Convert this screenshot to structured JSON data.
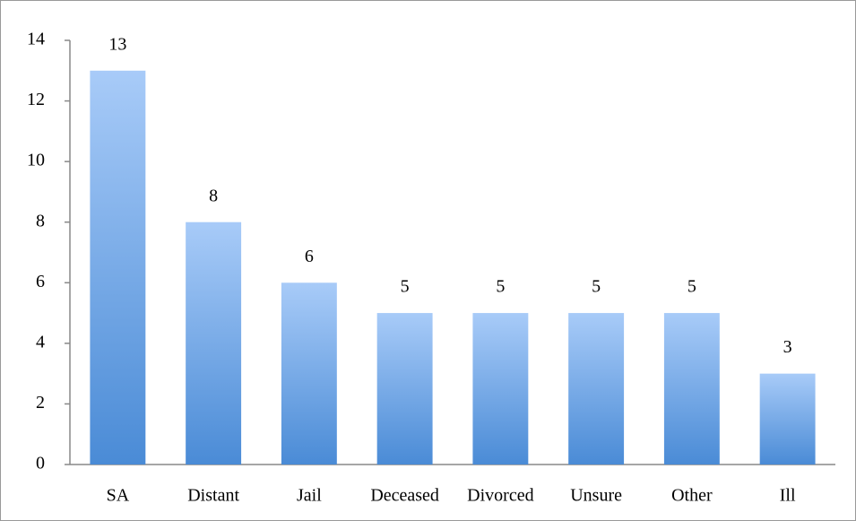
{
  "chart_data": {
    "type": "bar",
    "categories": [
      "SA",
      "Distant",
      "Jail",
      "Deceased",
      "Divorced",
      "Unsure",
      "Other",
      "Ill"
    ],
    "values": [
      13,
      8,
      6,
      5,
      5,
      5,
      5,
      3
    ],
    "color": "#4a8bd6",
    "ylim": [
      0,
      14
    ],
    "yticks": [
      0,
      2,
      4,
      6,
      8,
      10,
      12,
      14
    ],
    "grid": false
  }
}
